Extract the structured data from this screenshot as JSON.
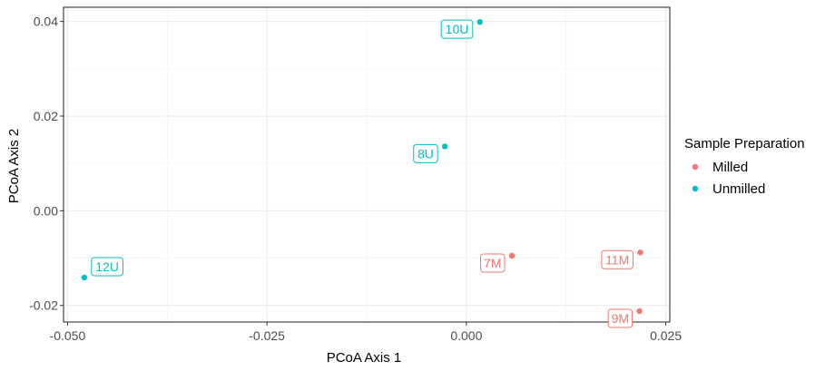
{
  "chart_data": {
    "type": "scatter",
    "xlabel": "PCoA Axis 1",
    "ylabel": "PCoA Axis 2",
    "xlim": [
      -0.0505,
      0.0255
    ],
    "ylim": [
      -0.0235,
      0.043
    ],
    "x_ticks": [
      -0.05,
      -0.025,
      0.0,
      0.025
    ],
    "x_tick_labels": [
      "-0.050",
      "-0.025",
      "0.000",
      "0.025"
    ],
    "y_ticks": [
      -0.02,
      0.0,
      0.02,
      0.04
    ],
    "y_tick_labels": [
      "-0.02",
      "0.00",
      "0.02",
      "0.04"
    ],
    "grid": true,
    "legend": {
      "title": "Sample Preparation",
      "position": "right",
      "entries": [
        {
          "name": "Milled",
          "color": "#F8766D"
        },
        {
          "name": "Unmilled",
          "color": "#00BFC4"
        }
      ]
    },
    "series": [
      {
        "name": "Milled",
        "color": "#F8766D",
        "points": [
          {
            "label": "7M",
            "x": 0.0057,
            "y": -0.0095,
            "label_side": "left"
          },
          {
            "label": "11M",
            "x": 0.0218,
            "y": -0.0088,
            "label_side": "left"
          },
          {
            "label": "9M",
            "x": 0.0217,
            "y": -0.0212,
            "label_side": "left"
          }
        ]
      },
      {
        "name": "Unmilled",
        "color": "#00BFC4",
        "points": [
          {
            "label": "10U",
            "x": 0.0017,
            "y": 0.0399,
            "label_side": "left"
          },
          {
            "label": "8U",
            "x": -0.0027,
            "y": 0.0136,
            "label_side": "left"
          },
          {
            "label": "12U",
            "x": -0.0479,
            "y": -0.0141,
            "label_side": "right"
          }
        ]
      }
    ]
  }
}
